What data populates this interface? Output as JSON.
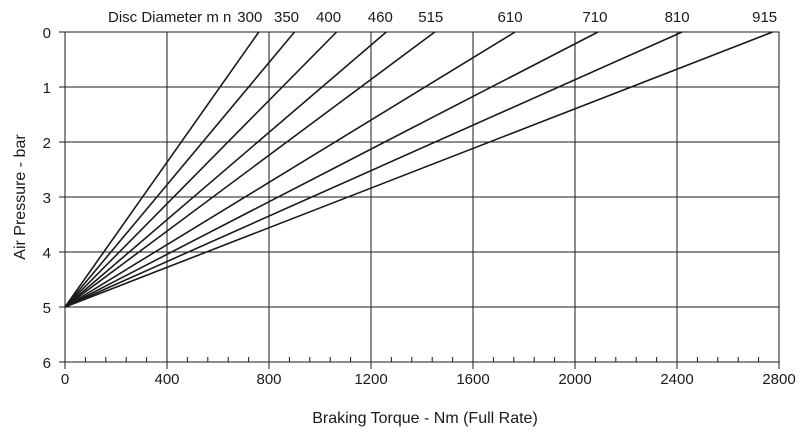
{
  "chart_data": {
    "type": "line",
    "xlabel": "Braking Torque - Nm (Full Rate)",
    "ylabel": "Air Pressure - bar",
    "top_label": "Disc Diameter m n",
    "xlim": [
      0,
      2800
    ],
    "ylim": [
      6,
      0
    ],
    "x_ticks": [
      "0",
      "400",
      "800",
      "1200",
      "1600",
      "2000",
      "2400",
      "2800"
    ],
    "y_ticks": [
      "0",
      "1",
      "2",
      "3",
      "4",
      "5",
      "6"
    ],
    "grid": true,
    "x_minor_step": 80,
    "series": [
      {
        "name": "300",
        "x": [
          0,
          760
        ],
        "y": [
          5,
          0
        ]
      },
      {
        "name": "350",
        "x": [
          0,
          900
        ],
        "y": [
          5,
          0
        ]
      },
      {
        "name": "400",
        "x": [
          0,
          1065
        ],
        "y": [
          5,
          0
        ]
      },
      {
        "name": "460",
        "x": [
          0,
          1260
        ],
        "y": [
          5,
          0
        ]
      },
      {
        "name": "515",
        "x": [
          0,
          1450
        ],
        "y": [
          5,
          0
        ]
      },
      {
        "name": "610",
        "x": [
          0,
          1765
        ],
        "y": [
          5,
          0
        ]
      },
      {
        "name": "710",
        "x": [
          0,
          2090
        ],
        "y": [
          5,
          0
        ]
      },
      {
        "name": "810",
        "x": [
          0,
          2420
        ],
        "y": [
          5,
          0
        ]
      },
      {
        "name": "915",
        "x": [
          0,
          2775
        ],
        "y": [
          5,
          0
        ]
      }
    ],
    "line_color": "#1a1a1a"
  }
}
